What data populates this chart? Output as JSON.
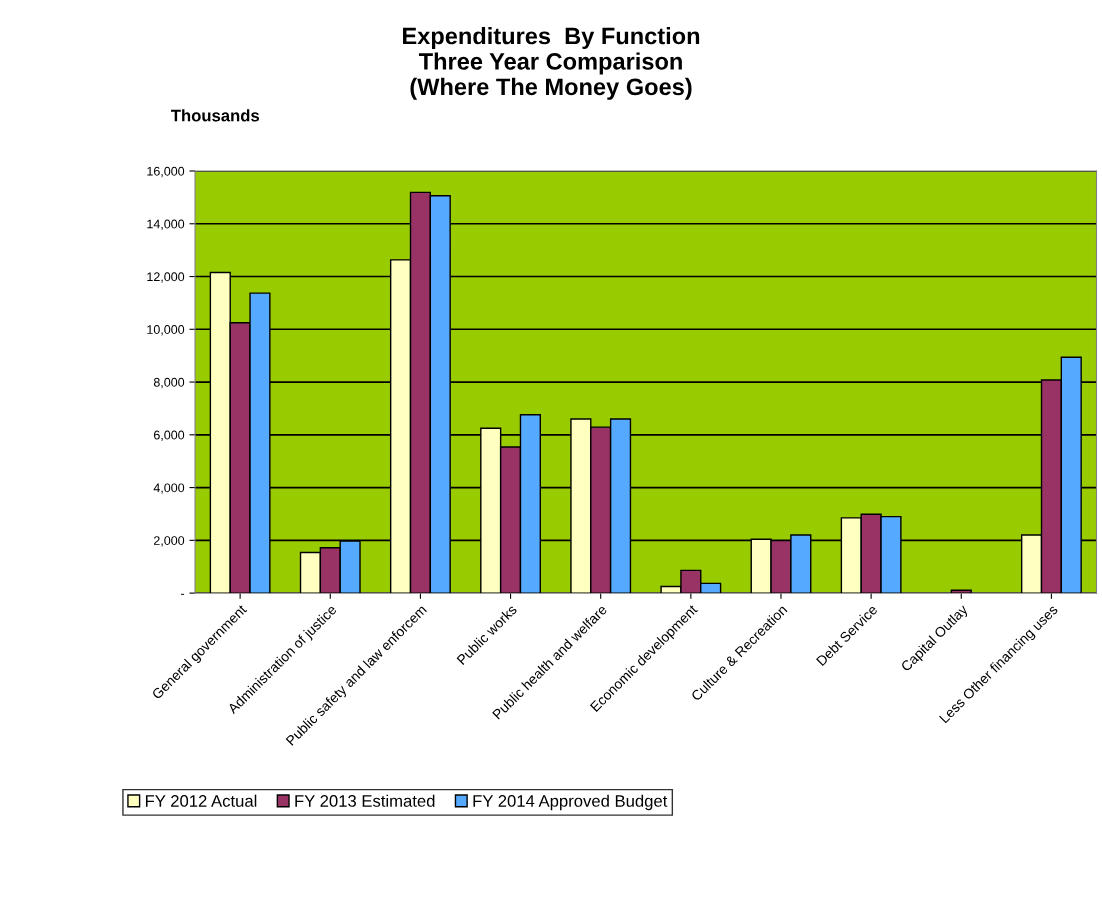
{
  "chart_data": {
    "type": "bar",
    "title": "Expenditures  By Function\nThree Year Comparison\n(Where The Money Goes)",
    "ylabel": "Thousands",
    "categories": [
      "General government",
      "Administration of justice",
      "Public safety and law enforcem",
      "Public works",
      "Public health and welfare",
      "Economic development",
      "Culture & Recreation",
      "Debt Service",
      "Capital Outlay",
      "Less Other financing uses"
    ],
    "series": [
      {
        "name": "FY 2012 Actual",
        "color": "#ffffc0",
        "values": [
          12150,
          1540,
          12630,
          6250,
          6600,
          250,
          2040,
          2850,
          null,
          2200
        ]
      },
      {
        "name": "FY 2013 Estimated",
        "color": "#993366",
        "values": [
          10250,
          1720,
          15190,
          5540,
          6290,
          860,
          1990,
          2990,
          110,
          8080
        ]
      },
      {
        "name": "FY 2014 Approved Budget",
        "color": "#55aaff",
        "values": [
          11370,
          1970,
          15060,
          6760,
          6600,
          370,
          2200,
          2900,
          null,
          8940
        ]
      }
    ],
    "ylim": [
      0,
      16000
    ],
    "yticks": [
      {
        "value": 0,
        "label": "-"
      },
      {
        "value": 2000,
        "label": "2,000"
      },
      {
        "value": 4000,
        "label": "4,000"
      },
      {
        "value": 6000,
        "label": "6,000"
      },
      {
        "value": 8000,
        "label": "8,000"
      },
      {
        "value": 10000,
        "label": "10,000"
      },
      {
        "value": 12000,
        "label": "12,000"
      },
      {
        "value": 14000,
        "label": "14,000"
      },
      {
        "value": 16000,
        "label": "16,000"
      }
    ],
    "grid": "y",
    "legend": "bottom"
  }
}
